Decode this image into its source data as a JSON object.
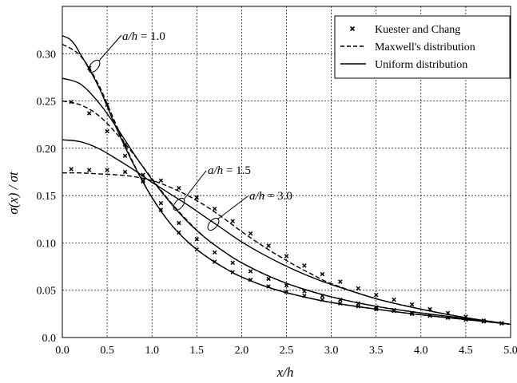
{
  "chart_data": {
    "type": "line",
    "xlabel": "x/h",
    "ylabel": "σ(x) / σt",
    "xlim": [
      0,
      5
    ],
    "ylim": [
      0,
      0.35
    ],
    "grid": true,
    "legend_position": "top-right",
    "x_ticks": [
      "0.0",
      "0.5",
      "1.0",
      "1.5",
      "2.0",
      "2.5",
      "3.0",
      "3.5",
      "4.0",
      "4.5",
      "5.0"
    ],
    "y_ticks": [
      "0.0",
      "0.05",
      "0.10",
      "0.15",
      "0.20",
      "0.25",
      "0.30"
    ],
    "legend": [
      {
        "label": "Kuester and Chang",
        "style": "markers"
      },
      {
        "label": "Maxwell's distribution",
        "style": "dashed"
      },
      {
        "label": "Uniform distribution",
        "style": "solid"
      }
    ],
    "annotations": [
      {
        "prefix": "a/h",
        "suffix": " = 1.0"
      },
      {
        "prefix": "a/h",
        "suffix": " = 1.5"
      },
      {
        "prefix": "a/h",
        "suffix": " = 3.0"
      }
    ],
    "series": [
      {
        "group": "1.0",
        "style": "dashed",
        "x": [
          0,
          0.2,
          0.4,
          0.6,
          0.8,
          1.0,
          1.2,
          1.4,
          1.6,
          1.8,
          2.0,
          2.3,
          2.6,
          3.0,
          3.5,
          4.0,
          4.5,
          5.0
        ],
        "y": [
          0.31,
          0.298,
          0.268,
          0.225,
          0.183,
          0.148,
          0.121,
          0.101,
          0.086,
          0.074,
          0.064,
          0.053,
          0.045,
          0.037,
          0.03,
          0.024,
          0.019,
          0.014
        ]
      },
      {
        "group": "1.0",
        "style": "solid",
        "x": [
          0,
          0.1,
          0.2,
          0.4,
          0.6,
          0.8,
          1.0,
          1.2,
          1.4,
          1.6,
          1.8,
          2.0,
          2.3,
          2.6,
          3.0,
          3.5,
          4.0,
          4.5,
          5.0
        ],
        "y": [
          0.319,
          0.314,
          0.3,
          0.266,
          0.222,
          0.182,
          0.148,
          0.121,
          0.101,
          0.086,
          0.074,
          0.064,
          0.053,
          0.045,
          0.037,
          0.03,
          0.024,
          0.019,
          0.014
        ]
      },
      {
        "group": "1.0",
        "style": "markers",
        "x": [
          0.3,
          0.5,
          0.7,
          0.9,
          1.1,
          1.3,
          1.5,
          1.7,
          1.9,
          2.1,
          2.3,
          2.5,
          2.7,
          2.9,
          3.1,
          3.3,
          3.5,
          3.7,
          3.9,
          4.1,
          4.3,
          4.5,
          4.7,
          4.9
        ],
        "y": [
          0.285,
          0.246,
          0.204,
          0.166,
          0.135,
          0.111,
          0.093,
          0.08,
          0.069,
          0.061,
          0.054,
          0.048,
          0.044,
          0.04,
          0.036,
          0.033,
          0.03,
          0.028,
          0.025,
          0.023,
          0.021,
          0.019,
          0.017,
          0.015
        ]
      },
      {
        "group": "1.5",
        "style": "dashed",
        "x": [
          0,
          0.2,
          0.4,
          0.6,
          0.8,
          1.0,
          1.2,
          1.4,
          1.6,
          1.8,
          2.0,
          2.3,
          2.6,
          3.0,
          3.5,
          4.0,
          4.5,
          5.0
        ],
        "y": [
          0.25,
          0.246,
          0.235,
          0.216,
          0.193,
          0.168,
          0.144,
          0.123,
          0.105,
          0.091,
          0.079,
          0.065,
          0.054,
          0.043,
          0.033,
          0.026,
          0.02,
          0.014
        ]
      },
      {
        "group": "1.5",
        "style": "solid",
        "x": [
          0,
          0.2,
          0.4,
          0.6,
          0.8,
          1.0,
          1.2,
          1.4,
          1.6,
          1.8,
          2.0,
          2.3,
          2.6,
          3.0,
          3.5,
          4.0,
          4.5,
          5.0
        ],
        "y": [
          0.274,
          0.268,
          0.249,
          0.223,
          0.194,
          0.167,
          0.143,
          0.122,
          0.105,
          0.091,
          0.079,
          0.065,
          0.054,
          0.043,
          0.033,
          0.026,
          0.02,
          0.014
        ]
      },
      {
        "group": "1.5",
        "style": "markers",
        "x": [
          0.1,
          0.3,
          0.5,
          0.7,
          0.9,
          1.1,
          1.3,
          1.5,
          1.7,
          1.9,
          2.1,
          2.3,
          2.5,
          2.7,
          2.9,
          3.1,
          3.3,
          3.5,
          3.7,
          3.9,
          4.1,
          4.3,
          4.5,
          4.7,
          4.9
        ],
        "y": [
          0.249,
          0.237,
          0.218,
          0.192,
          0.165,
          0.142,
          0.121,
          0.104,
          0.09,
          0.079,
          0.07,
          0.062,
          0.055,
          0.049,
          0.044,
          0.04,
          0.036,
          0.032,
          0.029,
          0.026,
          0.023,
          0.021,
          0.019,
          0.017,
          0.015
        ]
      },
      {
        "group": "3.0",
        "style": "dashed",
        "x": [
          0,
          0.2,
          0.4,
          0.6,
          0.8,
          1.0,
          1.2,
          1.4,
          1.6,
          1.8,
          2.0,
          2.2,
          2.4,
          2.6,
          2.8,
          3.0,
          3.5,
          4.0,
          4.5,
          5.0
        ],
        "y": [
          0.174,
          0.174,
          0.173,
          0.172,
          0.17,
          0.166,
          0.159,
          0.15,
          0.139,
          0.126,
          0.112,
          0.099,
          0.087,
          0.076,
          0.066,
          0.057,
          0.041,
          0.03,
          0.021,
          0.014
        ]
      },
      {
        "group": "3.0",
        "style": "solid",
        "x": [
          0,
          0.2,
          0.4,
          0.6,
          0.8,
          1.0,
          1.2,
          1.4,
          1.6,
          1.8,
          2.0,
          2.2,
          2.4,
          2.6,
          2.8,
          3.0,
          3.5,
          4.0,
          4.5,
          5.0
        ],
        "y": [
          0.209,
          0.207,
          0.2,
          0.189,
          0.177,
          0.164,
          0.152,
          0.14,
          0.127,
          0.114,
          0.101,
          0.09,
          0.08,
          0.071,
          0.063,
          0.056,
          0.041,
          0.03,
          0.021,
          0.014
        ]
      },
      {
        "group": "3.0",
        "style": "markers",
        "x": [
          0.1,
          0.3,
          0.5,
          0.7,
          0.9,
          1.1,
          1.3,
          1.5,
          1.7,
          1.9,
          2.1,
          2.3,
          2.5,
          2.7,
          2.9,
          3.1,
          3.3,
          3.5,
          3.7,
          3.9,
          4.1,
          4.3,
          4.5,
          4.7,
          4.9
        ],
        "y": [
          0.178,
          0.177,
          0.177,
          0.175,
          0.172,
          0.166,
          0.158,
          0.148,
          0.136,
          0.123,
          0.11,
          0.097,
          0.086,
          0.076,
          0.067,
          0.059,
          0.052,
          0.045,
          0.04,
          0.035,
          0.03,
          0.026,
          0.022,
          0.018,
          0.015
        ]
      }
    ]
  }
}
